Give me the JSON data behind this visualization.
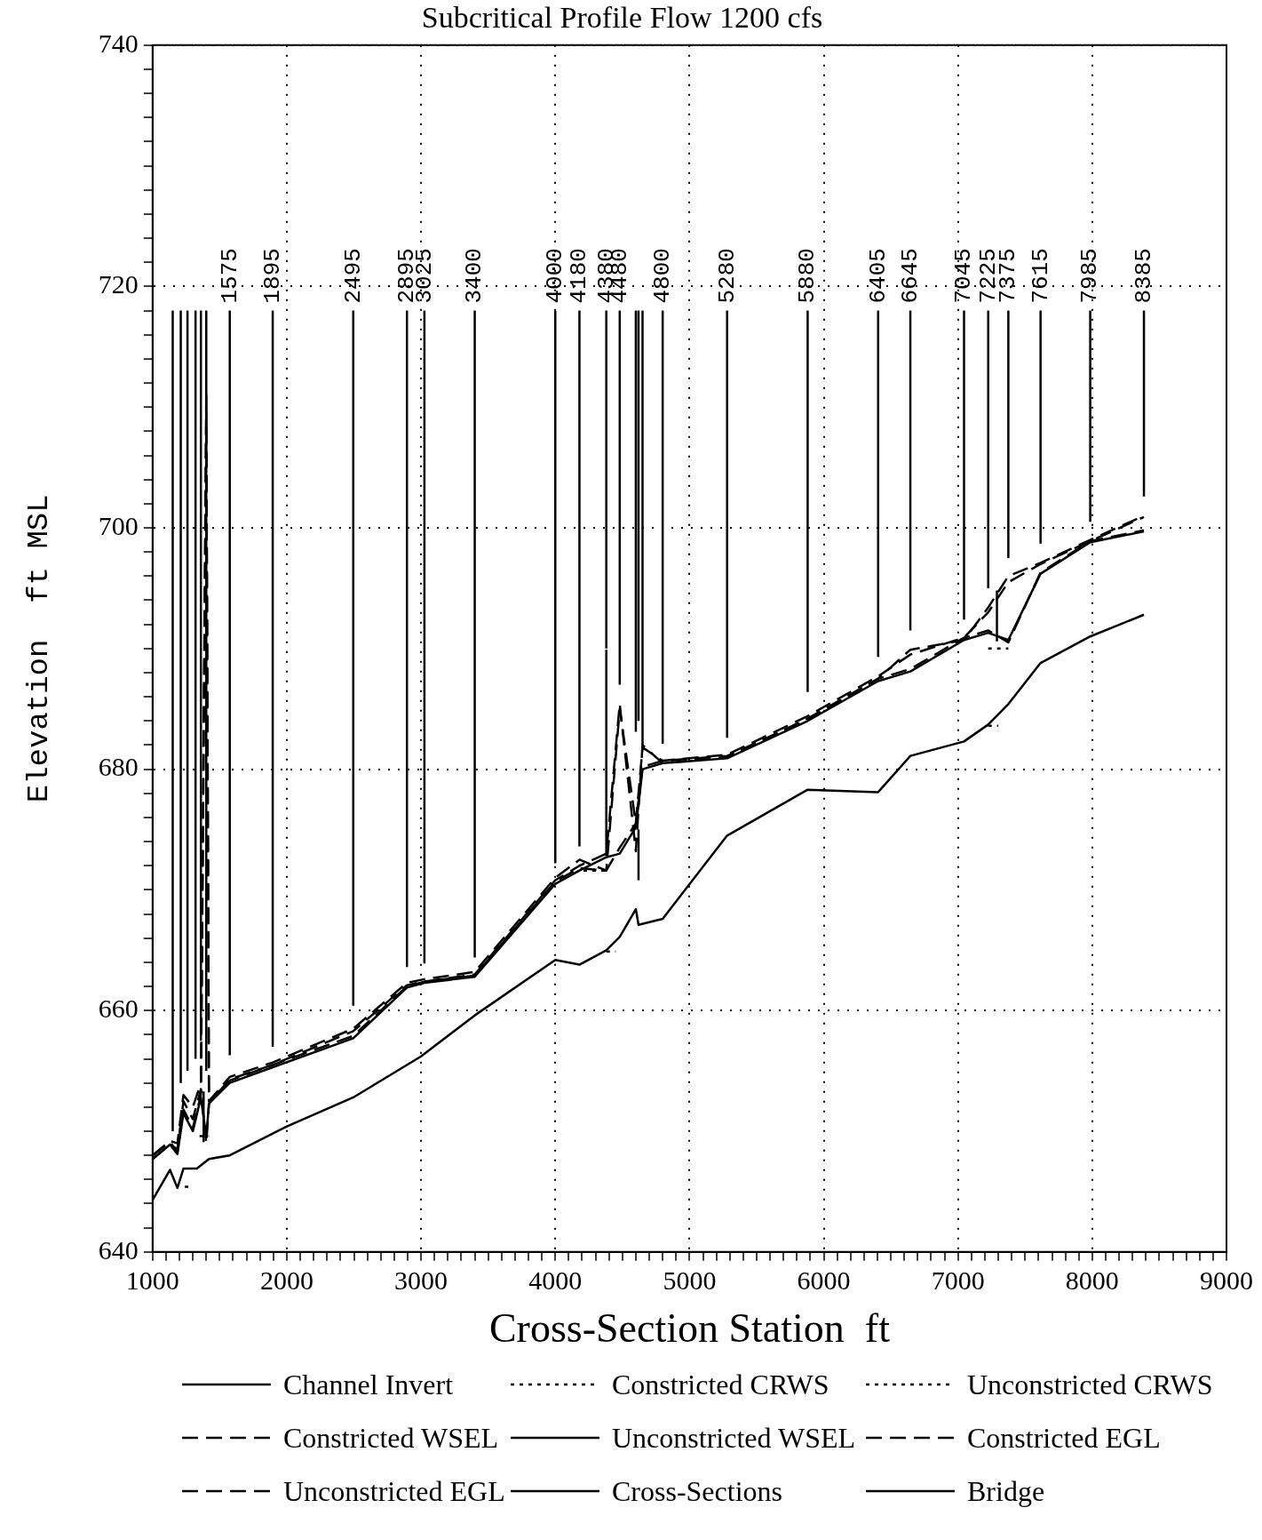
{
  "chart_data": {
    "type": "line",
    "title": "Subcritical Profile Flow 1200 cfs",
    "xlabel": "Cross-Section Station  ft",
    "ylabel": "Elevation  ft MSL",
    "xlim": [
      1000,
      9000
    ],
    "ylim": [
      640,
      740
    ],
    "xticks": [
      1000,
      {
        "value": 1100,
        "label": null
      },
      {
        "value": 1200,
        "label": null
      },
      {
        "value": 1300,
        "label": null
      },
      {
        "value": 1400,
        "label": null
      },
      {
        "value": 1500,
        "label": null
      },
      {
        "value": 1600,
        "label": null
      },
      {
        "value": 1700,
        "label": null
      },
      {
        "value": 1800,
        "label": null
      },
      {
        "value": 1900,
        "label": null
      },
      2000,
      {
        "value": 2100,
        "label": null
      },
      {
        "value": 2200,
        "label": null
      },
      {
        "value": 2300,
        "label": null
      },
      {
        "value": 2400,
        "label": null
      },
      {
        "value": 2500,
        "label": null
      },
      {
        "value": 2600,
        "label": null
      },
      {
        "value": 2700,
        "label": null
      },
      {
        "value": 2800,
        "label": null
      },
      {
        "value": 2900,
        "label": null
      },
      3000,
      {
        "value": 3100,
        "label": null
      },
      {
        "value": 3200,
        "label": null
      },
      {
        "value": 3300,
        "label": null
      },
      {
        "value": 3400,
        "label": null
      },
      {
        "value": 3500,
        "label": null
      },
      {
        "value": 3600,
        "label": null
      },
      {
        "value": 3700,
        "label": null
      },
      {
        "value": 3800,
        "label": null
      },
      {
        "value": 3900,
        "label": null
      },
      4000,
      {
        "value": 4100,
        "label": null
      },
      {
        "value": 4200,
        "label": null
      },
      {
        "value": 4300,
        "label": null
      },
      {
        "value": 4400,
        "label": null
      },
      {
        "value": 4500,
        "label": null
      },
      {
        "value": 4600,
        "label": null
      },
      {
        "value": 4700,
        "label": null
      },
      {
        "value": 4800,
        "label": null
      },
      {
        "value": 4900,
        "label": null
      },
      5000,
      {
        "value": 5100,
        "label": null
      },
      {
        "value": 5200,
        "label": null
      },
      {
        "value": 5300,
        "label": null
      },
      {
        "value": 5400,
        "label": null
      },
      {
        "value": 5500,
        "label": null
      },
      {
        "value": 5600,
        "label": null
      },
      {
        "value": 5700,
        "label": null
      },
      {
        "value": 5800,
        "label": null
      },
      {
        "value": 5900,
        "label": null
      },
      6000,
      {
        "value": 6100,
        "label": null
      },
      {
        "value": 6200,
        "label": null
      },
      {
        "value": 6300,
        "label": null
      },
      {
        "value": 6400,
        "label": null
      },
      {
        "value": 6500,
        "label": null
      },
      {
        "value": 6600,
        "label": null
      },
      {
        "value": 6700,
        "label": null
      },
      {
        "value": 6800,
        "label": null
      },
      {
        "value": 6900,
        "label": null
      },
      7000,
      {
        "value": 7100,
        "label": null
      },
      {
        "value": 7200,
        "label": null
      },
      {
        "value": 7300,
        "label": null
      },
      {
        "value": 7400,
        "label": null
      },
      {
        "value": 7500,
        "label": null
      },
      {
        "value": 7600,
        "label": null
      },
      {
        "value": 7700,
        "label": null
      },
      {
        "value": 7800,
        "label": null
      },
      {
        "value": 7900,
        "label": null
      },
      8000,
      {
        "value": 8100,
        "label": null
      },
      {
        "value": 8200,
        "label": null
      },
      {
        "value": 8300,
        "label": null
      },
      {
        "value": 8400,
        "label": null
      },
      {
        "value": 8500,
        "label": null
      },
      {
        "value": 8600,
        "label": null
      },
      {
        "value": 8700,
        "label": null
      },
      {
        "value": 8800,
        "label": null
      },
      {
        "value": 8900,
        "label": null
      },
      9000
    ],
    "yticks": [
      640,
      {
        "value": 642,
        "label": null
      },
      {
        "value": 644,
        "label": null
      },
      {
        "value": 646,
        "label": null
      },
      {
        "value": 648,
        "label": null
      },
      {
        "value": 650,
        "label": null
      },
      {
        "value": 652,
        "label": null
      },
      {
        "value": 654,
        "label": null
      },
      {
        "value": 656,
        "label": null
      },
      {
        "value": 658,
        "label": null
      },
      660,
      {
        "value": 662,
        "label": null
      },
      {
        "value": 664,
        "label": null
      },
      {
        "value": 666,
        "label": null
      },
      {
        "value": 668,
        "label": null
      },
      {
        "value": 670,
        "label": null
      },
      {
        "value": 672,
        "label": null
      },
      {
        "value": 674,
        "label": null
      },
      {
        "value": 676,
        "label": null
      },
      {
        "value": 678,
        "label": null
      },
      680,
      {
        "value": 682,
        "label": null
      },
      {
        "value": 684,
        "label": null
      },
      {
        "value": 686,
        "label": null
      },
      {
        "value": 688,
        "label": null
      },
      {
        "value": 690,
        "label": null
      },
      {
        "value": 692,
        "label": null
      },
      {
        "value": 694,
        "label": null
      },
      {
        "value": 696,
        "label": null
      },
      {
        "value": 698,
        "label": null
      },
      700,
      {
        "value": 702,
        "label": null
      },
      {
        "value": 704,
        "label": null
      },
      {
        "value": 706,
        "label": null
      },
      {
        "value": 708,
        "label": null
      },
      {
        "value": 710,
        "label": null
      },
      {
        "value": 712,
        "label": null
      },
      {
        "value": 714,
        "label": null
      },
      {
        "value": 716,
        "label": null
      },
      {
        "value": 718,
        "label": null
      },
      720,
      {
        "value": 722,
        "label": null
      },
      {
        "value": 724,
        "label": null
      },
      {
        "value": 726,
        "label": null
      },
      {
        "value": 728,
        "label": null
      },
      {
        "value": 730,
        "label": null
      },
      {
        "value": 732,
        "label": null
      },
      {
        "value": 734,
        "label": null
      },
      {
        "value": 736,
        "label": null
      },
      {
        "value": 738,
        "label": null
      },
      740
    ],
    "grid": true,
    "legend": "bottom",
    "marker": "none",
    "series": [
      {
        "name": "Channel Invert",
        "color": "#000000",
        "line_style": "solid",
        "x": [
          1000,
          1130,
          1185,
          1230,
          1330,
          1420,
          1575,
          2000,
          2495,
          3000,
          3400,
          4000,
          4180,
          4380,
          4480,
          4600,
          4620,
          4800,
          5280,
          5880,
          6405,
          6645,
          7045,
          7225,
          7375,
          7615,
          7985,
          8385
        ],
        "values": [
          644.3,
          646.8,
          645.3,
          646.9,
          646.9,
          647.7,
          648.0,
          650.4,
          652.8,
          656.2,
          659.6,
          664.2,
          663.8,
          665.0,
          666.1,
          668.4,
          667.1,
          667.6,
          674.5,
          678.3,
          678.1,
          681.1,
          682.3,
          683.7,
          685.4,
          688.8,
          691.0,
          692.8
        ]
      },
      {
        "name": "Constricted CRWS",
        "color": "#000000",
        "line_style": "dotted",
        "x": [
          1240,
          1300,
          null,
          4380,
          4450,
          null,
          7225,
          7375
        ],
        "values": [
          645.4,
          645.4,
          null,
          664.9,
          664.9,
          null,
          690.0,
          690.0
        ]
      },
      {
        "name": "Unconstricted CRWS",
        "color": "#000000",
        "line_style": "dotted",
        "x": [
          1350,
          1420,
          null,
          4210,
          4380,
          null,
          7225,
          7300
        ],
        "values": [
          649.6,
          649.6,
          null,
          671.6,
          671.6,
          null,
          683.6,
          683.6
        ]
      },
      {
        "name": "Constricted WSEL",
        "color": "#000000",
        "line_style": "dashed",
        "x": [
          1000,
          1130,
          1185,
          1230,
          1300,
          1360,
          1400,
          1420,
          1575,
          1895,
          2495,
          2895,
          3025,
          3400,
          4000,
          4180,
          4380,
          4480,
          4600,
          4650,
          4800,
          5280,
          5880,
          6405,
          6645,
          7045,
          7225,
          7375,
          7615,
          7985,
          8385
        ],
        "values": [
          647.7,
          648.9,
          648.5,
          652.5,
          651.0,
          653.5,
          649.0,
          652.3,
          654.3,
          655.5,
          658.3,
          662.1,
          662.4,
          663.0,
          670.8,
          672.0,
          673.0,
          685.4,
          673.2,
          682.0,
          680.5,
          681.0,
          684.2,
          687.5,
          689.9,
          690.7,
          693.4,
          696.0,
          697.1,
          699.0,
          701.0
        ]
      },
      {
        "name": "Unconstricted WSEL",
        "color": "#000000",
        "line_style": "solid",
        "x": [
          1000,
          1130,
          1185,
          1230,
          1300,
          1360,
          1400,
          1420,
          1575,
          1895,
          2495,
          2895,
          3025,
          3400,
          4000,
          4180,
          4380,
          4480,
          4600,
          4650,
          4800,
          5280,
          5880,
          6405,
          6645,
          7045,
          7225,
          7375,
          7615,
          7985,
          8385
        ],
        "values": [
          647.7,
          648.9,
          648.1,
          651.5,
          650.0,
          652.8,
          649.5,
          652.3,
          654.0,
          655.3,
          657.7,
          661.9,
          662.3,
          662.8,
          670.5,
          671.6,
          672.7,
          673.0,
          675.2,
          680.0,
          680.5,
          680.9,
          684.0,
          687.3,
          688.1,
          690.7,
          691.3,
          690.7,
          696.2,
          698.8,
          699.7
        ]
      },
      {
        "name": "Constricted EGL",
        "color": "#000000",
        "line_style": "dashed",
        "x": [
          1000,
          1130,
          1185,
          1230,
          1300,
          1360,
          1400,
          1420,
          1575,
          1895,
          2495,
          2895,
          3025,
          3400,
          4000,
          4180,
          4380,
          4480,
          4600,
          4650,
          4800,
          5280,
          5880,
          6405,
          6645,
          7045,
          7225,
          7375,
          7615,
          7985,
          8385
        ],
        "values": [
          648.0,
          649.2,
          649.0,
          653.0,
          652.0,
          654.0,
          711.0,
          652.5,
          654.5,
          655.7,
          658.5,
          662.3,
          662.6,
          663.2,
          671.0,
          672.5,
          671.6,
          685.0,
          675.5,
          681.8,
          680.7,
          681.2,
          684.4,
          687.7,
          689.5,
          690.9,
          693.0,
          695.5,
          697.0,
          698.9,
          700.9
        ]
      },
      {
        "name": "Unconstricted EGL",
        "color": "#000000",
        "line_style": "dashed",
        "x": [
          1000,
          1130,
          1185,
          1230,
          1300,
          1360,
          1400,
          1420,
          1575,
          1895,
          2495,
          2895,
          3025,
          3400,
          4000,
          4180,
          4380,
          4480,
          4600,
          4650,
          4800,
          5280,
          5880,
          6405,
          6645,
          7045,
          7225,
          7375,
          7615,
          7985,
          8385
        ],
        "values": [
          648.0,
          649.1,
          648.3,
          651.8,
          650.3,
          653.0,
          709.0,
          652.5,
          654.2,
          655.5,
          657.9,
          662.0,
          662.4,
          662.9,
          670.7,
          671.8,
          671.6,
          673.5,
          675.5,
          680.2,
          680.7,
          681.1,
          684.1,
          687.5,
          688.3,
          690.9,
          691.5,
          690.5,
          696.3,
          698.9,
          699.8
        ]
      },
      {
        "name": "Cross-Sections",
        "color": "#000000",
        "line_style": "solid",
        "x": [
          1150,
          1150,
          null,
          1210,
          1210,
          null,
          1260,
          1260,
          null,
          1320,
          1320,
          null,
          1360,
          1360,
          null,
          1400,
          1400,
          null,
          1575,
          1575,
          null,
          1895,
          1895,
          null,
          2495,
          2495,
          null,
          2895,
          2895,
          null,
          3025,
          3025,
          null,
          3400,
          3400,
          null,
          4000,
          4000,
          null,
          4180,
          4180,
          null,
          4380,
          4380,
          null,
          4480,
          4480,
          null,
          4600,
          4600,
          null,
          4620,
          4620,
          null,
          4650,
          4650,
          null,
          4800,
          4800,
          null,
          5280,
          5280,
          null,
          5880,
          5880,
          null,
          6405,
          6405,
          null,
          6645,
          6645,
          null,
          7045,
          7045,
          null,
          7225,
          7225,
          null,
          7375,
          7375,
          null,
          7615,
          7615,
          null,
          7985,
          7985,
          null,
          8385,
          8385
        ],
        "values": [
          650.0,
          718,
          null,
          654.0,
          718,
          null,
          655.0,
          718,
          null,
          656.0,
          718,
          null,
          657.5,
          718,
          null,
          655.0,
          718,
          null,
          656.3,
          718,
          null,
          657.0,
          718,
          null,
          660.4,
          718,
          null,
          663.6,
          718,
          null,
          663.9,
          718,
          null,
          664.4,
          718,
          null,
          672.2,
          718,
          null,
          673.6,
          718,
          null,
          690.0,
          718,
          null,
          687.0,
          718,
          null,
          683.1,
          718,
          null,
          684.0,
          718,
          null,
          682.0,
          718,
          null,
          682.1,
          718,
          null,
          682.6,
          718,
          null,
          686.4,
          718,
          null,
          689.3,
          718,
          null,
          691.5,
          718,
          null,
          692.4,
          718,
          null,
          695.0,
          718,
          null,
          697.5,
          718,
          null,
          698.7,
          718,
          null,
          700.5,
          718,
          null,
          702.6,
          718
        ]
      },
      {
        "name": "Bridge",
        "color": "#000000",
        "line_style": "solid",
        "x": [
          1380,
          1380,
          null,
          4380,
          4380,
          null,
          4620,
          4620,
          null,
          7290,
          7290
        ],
        "values": [
          649.1,
          653.3,
          null,
          672.8,
          689.9,
          null,
          670.8,
          675.0,
          null,
          690.6,
          694.8
        ]
      }
    ],
    "annotations": [
      {
        "text": "1575",
        "x": 1575,
        "y": 718
      },
      {
        "text": "1895",
        "x": 1895,
        "y": 718
      },
      {
        "text": "2495",
        "x": 2495,
        "y": 718
      },
      {
        "text": "2895",
        "x": 2895,
        "y": 718
      },
      {
        "text": "3025",
        "x": 3025,
        "y": 718
      },
      {
        "text": "3400",
        "x": 3400,
        "y": 718
      },
      {
        "text": "4000",
        "x": 4000,
        "y": 718
      },
      {
        "text": "4180",
        "x": 4180,
        "y": 718
      },
      {
        "text": "4380",
        "x": 4380,
        "y": 718
      },
      {
        "text": "4480",
        "x": 4480,
        "y": 718
      },
      {
        "text": "4800",
        "x": 4800,
        "y": 718
      },
      {
        "text": "5280",
        "x": 5280,
        "y": 718
      },
      {
        "text": "5880",
        "x": 5880,
        "y": 718
      },
      {
        "text": "6405",
        "x": 6405,
        "y": 718
      },
      {
        "text": "6645",
        "x": 6645,
        "y": 718
      },
      {
        "text": "7045",
        "x": 7045,
        "y": 718
      },
      {
        "text": "7225",
        "x": 7225,
        "y": 718
      },
      {
        "text": "7375",
        "x": 7375,
        "y": 718
      },
      {
        "text": "7615",
        "x": 7615,
        "y": 718
      },
      {
        "text": "7985",
        "x": 7985,
        "y": 718
      },
      {
        "text": "8385",
        "x": 8385,
        "y": 718
      }
    ]
  }
}
